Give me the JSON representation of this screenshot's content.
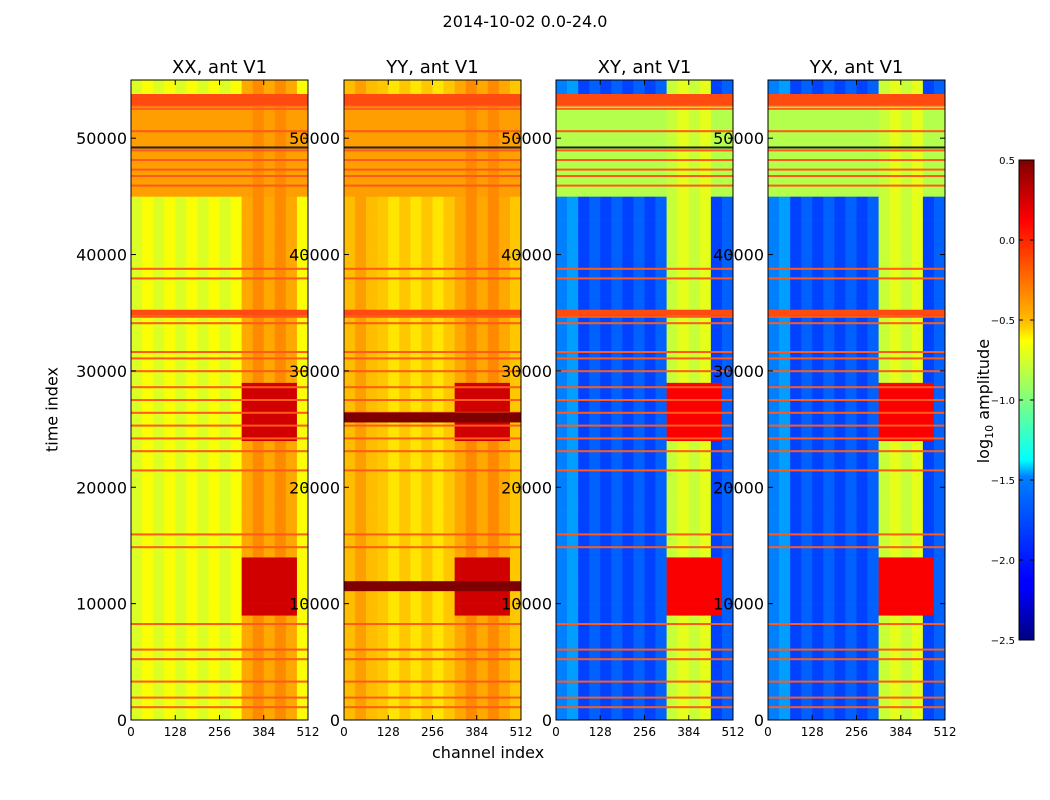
{
  "figure": {
    "suptitle": "2014-10-02 0.0-24.0",
    "ylabel": "time index",
    "xlabel": "channel index",
    "colorbar_label": "log",
    "colorbar_label_sub": "10",
    "colorbar_label_rest": " amplitude"
  },
  "chart_data": [
    {
      "type": "heatmap",
      "title": "XX, ant V1",
      "xlim": [
        0,
        512
      ],
      "ylim": [
        0,
        55000
      ],
      "xticks": [
        "0",
        "128",
        "256",
        "384",
        "512"
      ],
      "yticks": [
        "0",
        "10000",
        "20000",
        "30000",
        "40000",
        "50000"
      ],
      "xlabel": "",
      "ylabel": "time index"
    },
    {
      "type": "heatmap",
      "title": "YY, ant V1",
      "xlim": [
        0,
        512
      ],
      "ylim": [
        0,
        55000
      ],
      "xticks": [
        "0",
        "128",
        "256",
        "384",
        "512"
      ],
      "yticks": [
        "0",
        "10000",
        "20000",
        "30000",
        "40000",
        "50000"
      ],
      "xlabel": "channel index",
      "ylabel": ""
    },
    {
      "type": "heatmap",
      "title": "XY, ant V1",
      "xlim": [
        0,
        512
      ],
      "ylim": [
        0,
        55000
      ],
      "xticks": [
        "0",
        "128",
        "256",
        "384",
        "512"
      ],
      "yticks": [
        "0",
        "10000",
        "20000",
        "30000",
        "40000",
        "50000"
      ],
      "xlabel": "",
      "ylabel": ""
    },
    {
      "type": "heatmap",
      "title": "YX, ant V1",
      "xlim": [
        0,
        512
      ],
      "ylim": [
        0,
        55000
      ],
      "xticks": [
        "0",
        "128",
        "256",
        "384",
        "512"
      ],
      "yticks": [
        "0",
        "10000",
        "20000",
        "30000",
        "40000",
        "50000"
      ],
      "xlabel": "",
      "ylabel": ""
    },
    {
      "type": "colorbar",
      "label": "log10 amplitude",
      "range": [
        -2.5,
        0.5
      ],
      "ticks": [
        "0.5",
        "0.0",
        "−0.5",
        "−1.0",
        "−1.5",
        "−2.0",
        "−2.5"
      ],
      "colormap": "jet"
    }
  ]
}
